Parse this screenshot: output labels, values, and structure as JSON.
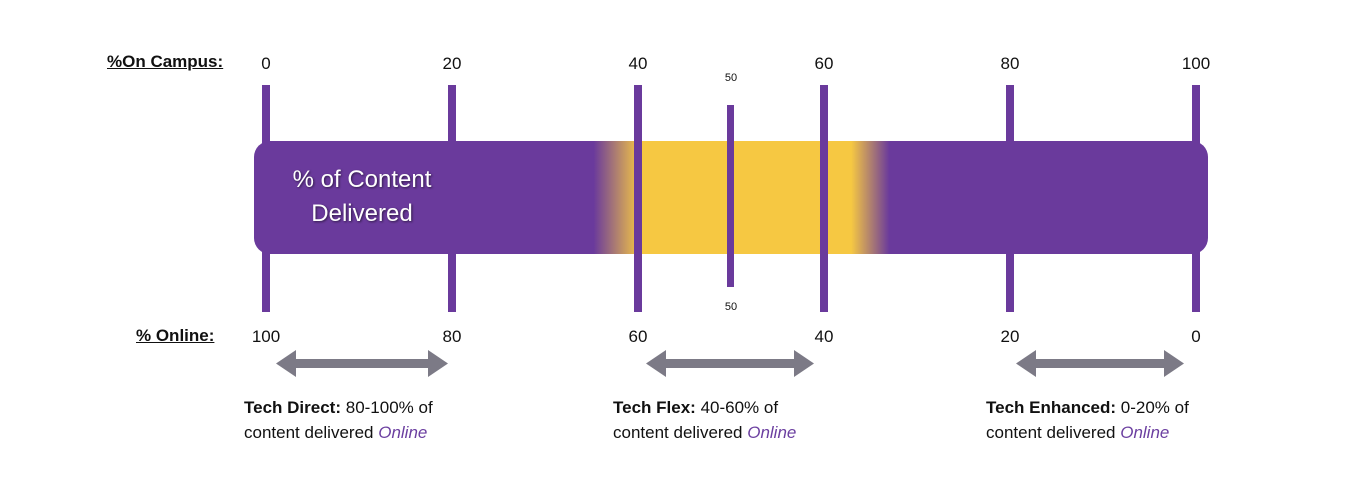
{
  "top_axis": {
    "label": "%On Campus:",
    "ticks": [
      "0",
      "20",
      "40",
      "60",
      "80",
      "100"
    ],
    "mid_tick": "50"
  },
  "bottom_axis": {
    "label": "% Online:",
    "ticks": [
      "100",
      "80",
      "60",
      "40",
      "20",
      "0"
    ],
    "mid_tick": "50"
  },
  "bar": {
    "text_line1": "% of Content",
    "text_line2": "Delivered"
  },
  "categories": [
    {
      "name": "Tech Direct:",
      "range": "80-100% of",
      "line2": "content delivered",
      "emph": "Online"
    },
    {
      "name": "Tech Flex:",
      "range": "40-60% of",
      "line2": "content delivered",
      "emph": "Online"
    },
    {
      "name": "Tech Enhanced:",
      "range": "0-20% of",
      "line2": "content delivered",
      "emph": "Online"
    }
  ],
  "colors": {
    "purple": "#6a3a9c",
    "gold": "#f6c842",
    "arrow_gray": "#7c7a86",
    "online_text": "#6b3fa0"
  }
}
